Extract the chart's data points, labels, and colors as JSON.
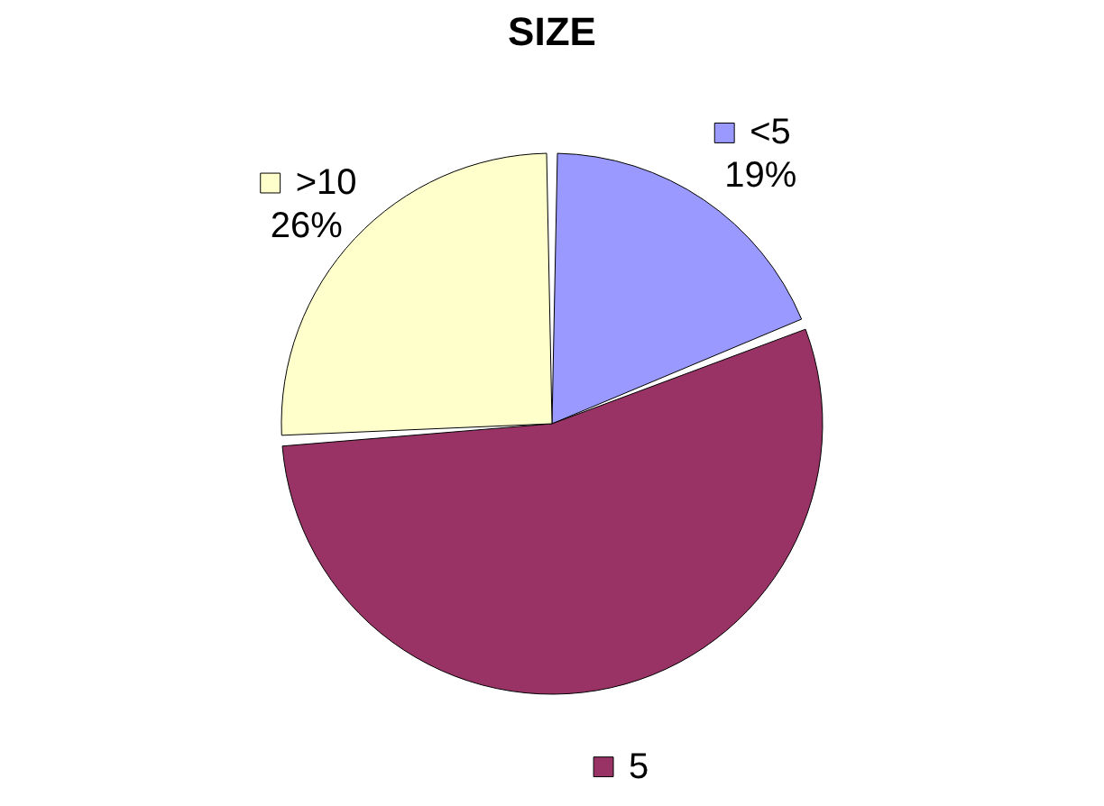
{
  "chart_data": {
    "type": "pie",
    "title": "SIZE",
    "categories": [
      "<5",
      "5",
      ">10"
    ],
    "values": [
      19,
      55,
      26
    ],
    "colors": [
      "#9999ff",
      "#993366",
      "#ffffcc"
    ],
    "value_labels": [
      "19%",
      null,
      "26%"
    ],
    "legend": "bottom left"
  }
}
